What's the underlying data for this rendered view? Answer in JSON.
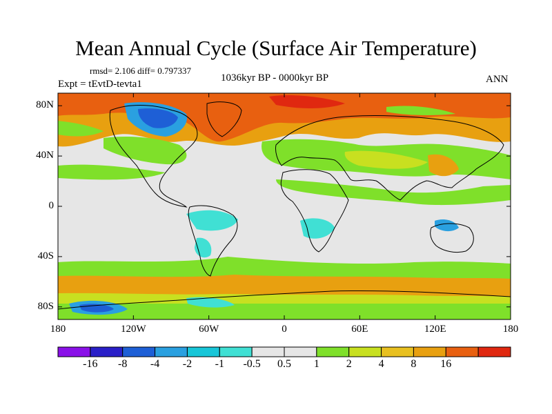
{
  "title": "Mean Annual Cycle (Surface Air Temperature)",
  "stats": "rmsd= 2.106 diff= 0.797337",
  "period": "1036kyr BP - 0000kyr BP",
  "experiment": "Expt = tEvtD-tevta1",
  "season": "ANN",
  "map": {
    "lon_range": [
      -180,
      180
    ],
    "lat_range": [
      -90,
      90
    ],
    "lat_ticks": [
      {
        "value": 80,
        "label": "80N"
      },
      {
        "value": 40,
        "label": "40N"
      },
      {
        "value": 0,
        "label": "0"
      },
      {
        "value": -40,
        "label": "40S"
      },
      {
        "value": -80,
        "label": "80S"
      }
    ],
    "lon_ticks": [
      {
        "value": -180,
        "label": "180"
      },
      {
        "value": -120,
        "label": "120W"
      },
      {
        "value": -60,
        "label": "60W"
      },
      {
        "value": 0,
        "label": "0"
      },
      {
        "value": 60,
        "label": "60E"
      },
      {
        "value": 120,
        "label": "120E"
      },
      {
        "value": 180,
        "label": "180"
      }
    ]
  },
  "colorbar": {
    "colors": [
      "#8a10e8",
      "#2a1fc8",
      "#1e5fd6",
      "#2aa0e0",
      "#18c6d8",
      "#40e0d4",
      "#e6e6e6",
      "#e6e6e6",
      "#7fe02a",
      "#c8e020",
      "#e8c020",
      "#e8a010",
      "#e86010",
      "#e02810"
    ],
    "labels": [
      "-16",
      "-8",
      "-4",
      "-2",
      "-1",
      "-0.5",
      "0.5",
      "1",
      "2",
      "4",
      "8",
      "16"
    ]
  }
}
